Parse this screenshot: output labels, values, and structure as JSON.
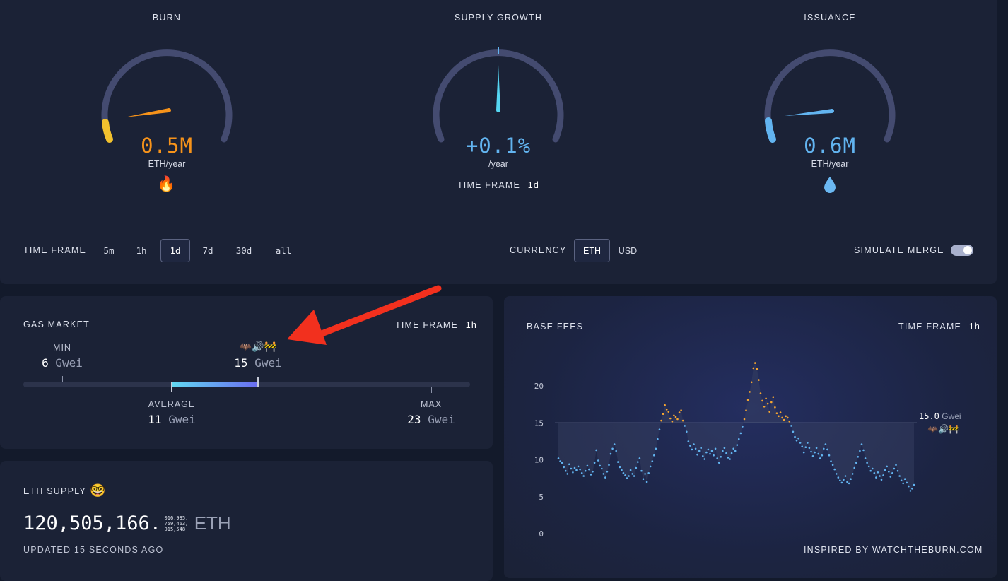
{
  "gauges": {
    "burn": {
      "title": "BURN",
      "value": "0.5M",
      "unit": "ETH/year",
      "icon": "fire-icon",
      "color": "#f7931a"
    },
    "supply_growth": {
      "title": "SUPPLY GROWTH",
      "value": "+0.1%",
      "unit": "/year",
      "timeframe_label": "TIME FRAME",
      "timeframe_value": "1d",
      "color": "#62b4f0"
    },
    "issuance": {
      "title": "ISSUANCE",
      "value": "0.6M",
      "unit": "ETH/year",
      "icon": "droplet-icon",
      "color": "#62b4f0"
    }
  },
  "controls": {
    "timeframe_label": "TIME FRAME",
    "timeframes": [
      "5m",
      "1h",
      "1d",
      "7d",
      "30d",
      "all"
    ],
    "selected_timeframe": "1d",
    "currency_label": "CURRENCY",
    "currencies": [
      "ETH",
      "USD"
    ],
    "selected_currency": "ETH",
    "simulate_merge_label": "SIMULATE MERGE",
    "simulate_merge_on": true
  },
  "gas_market": {
    "title": "GAS MARKET",
    "timeframe_label": "TIME FRAME",
    "timeframe_value": "1h",
    "min_label": "MIN",
    "min_value": "6",
    "current_value": "15",
    "current_emoji": "🦇🔊🚧",
    "average_label": "AVERAGE",
    "average_value": "11",
    "max_label": "MAX",
    "max_value": "23",
    "unit": "Gwei"
  },
  "eth_supply": {
    "title": "ETH SUPPLY",
    "icon": "nerd-face-icon",
    "value_main": "120,505,166.",
    "value_fraction": [
      "016,935,",
      "759,463,",
      "015,548"
    ],
    "unit": "ETH",
    "updated": "UPDATED 15 SECONDS AGO"
  },
  "base_fees": {
    "title": "BASE FEES",
    "timeframe_label": "TIME FRAME",
    "timeframe_value": "1h",
    "current_value": "15.0",
    "current_unit": "Gwei",
    "current_emoji": "🦇🔊🚧",
    "footer": "INSPIRED BY WATCHTHEBURN.COM"
  },
  "chart_data": {
    "type": "scatter",
    "title": "BASE FEES",
    "xlabel": "",
    "ylabel": "",
    "yticks": [
      0,
      5,
      10,
      15,
      20
    ],
    "ylim": [
      0,
      25
    ],
    "threshold": 15,
    "above_color": "#f7a630",
    "below_color": "#62b4f0",
    "values": [
      10.2,
      9.8,
      9.6,
      9.0,
      8.5,
      8.1,
      9.4,
      8.8,
      8.3,
      8.9,
      8.6,
      9.1,
      8.7,
      8.2,
      7.8,
      8.5,
      9.2,
      8.7,
      8.0,
      8.4,
      9.6,
      11.3,
      9.9,
      9.2,
      8.8,
      8.1,
      7.6,
      8.4,
      9.3,
      10.8,
      11.5,
      12.1,
      11.2,
      9.7,
      9.0,
      8.6,
      8.2,
      7.9,
      7.5,
      7.8,
      8.6,
      8.1,
      7.8,
      8.9,
      9.7,
      10.2,
      8.5,
      7.4,
      8.1,
      7.0,
      8.2,
      9.1,
      9.8,
      10.6,
      11.5,
      12.8,
      14.1,
      15.3,
      16.2,
      17.4,
      16.8,
      16.5,
      15.6,
      15.2,
      16.0,
      15.8,
      15.5,
      16.4,
      16.7,
      15.3,
      14.6,
      13.8,
      12.5,
      11.9,
      11.4,
      12.1,
      11.5,
      10.7,
      11.2,
      11.6,
      10.5,
      10.1,
      11.0,
      11.4,
      10.8,
      11.2,
      10.6,
      11.5,
      10.2,
      9.6,
      10.4,
      11.2,
      11.6,
      10.9,
      10.3,
      10.1,
      10.9,
      11.5,
      11.2,
      12.0,
      12.8,
      13.6,
      14.5,
      15.5,
      16.7,
      18.1,
      19.2,
      20.5,
      22.4,
      23.1,
      22.3,
      20.8,
      19.0,
      18.0,
      17.2,
      18.3,
      17.6,
      16.5,
      17.8,
      18.5,
      17.1,
      16.3,
      15.9,
      16.4,
      15.7,
      15.4,
      15.9,
      15.7,
      15.2,
      14.6,
      13.8,
      13.1,
      12.6,
      12.9,
      12.3,
      11.8,
      11.0,
      11.7,
      12.3,
      11.6,
      11.1,
      10.5,
      11.0,
      11.6,
      10.8,
      10.2,
      10.6,
      11.5,
      12.1,
      11.4,
      10.6,
      9.8,
      9.3,
      8.7,
      8.1,
      7.6,
      7.2,
      6.9,
      7.3,
      7.8,
      7.0,
      6.8,
      7.4,
      8.1,
      8.9,
      9.6,
      10.4,
      11.2,
      12.1,
      11.3,
      10.2,
      9.6,
      9.1,
      8.5,
      8.8,
      8.2,
      7.6,
      8.3,
      7.8,
      7.3,
      7.9,
      8.6,
      9.1,
      8.4,
      7.7,
      8.2,
      8.8,
      9.3,
      8.5,
      7.8,
      7.2,
      6.8,
      7.4,
      6.9,
      6.4,
      5.8,
      6.1,
      6.6
    ]
  }
}
